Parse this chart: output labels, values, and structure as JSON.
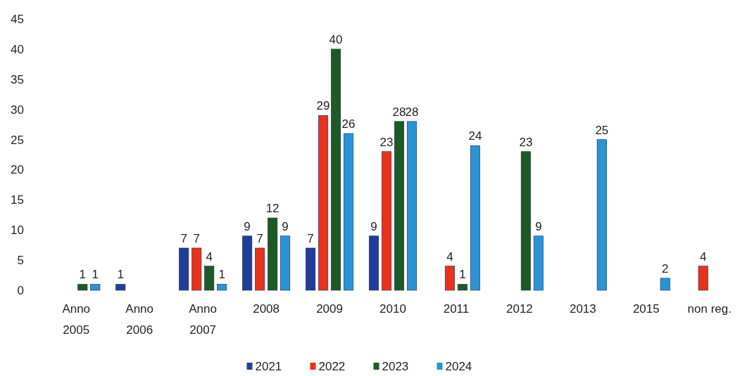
{
  "chart_data": {
    "type": "bar",
    "categories": [
      "Anno\n2005",
      "Anno\n2006",
      "Anno\n2007",
      "2008",
      "2009",
      "2010",
      "2011",
      "2012",
      "2013",
      "2015",
      "non reg."
    ],
    "series": [
      {
        "name": "2021",
        "color": "#1f3e9a",
        "values": [
          null,
          1,
          7,
          9,
          7,
          9,
          null,
          null,
          null,
          null,
          null
        ]
      },
      {
        "name": "2022",
        "color": "#e8321e",
        "values": [
          null,
          null,
          7,
          7,
          29,
          23,
          4,
          null,
          null,
          null,
          4
        ]
      },
      {
        "name": "2023",
        "color": "#1e5a23",
        "values": [
          1,
          null,
          4,
          12,
          40,
          28,
          1,
          23,
          null,
          null,
          null
        ]
      },
      {
        "name": "2024",
        "color": "#2a93d5",
        "values": [
          1,
          null,
          1,
          9,
          26,
          28,
          24,
          9,
          25,
          2,
          null
        ]
      }
    ],
    "ylim": [
      0,
      45
    ],
    "yticks": [
      0,
      5,
      10,
      15,
      20,
      25,
      30,
      35,
      40,
      45
    ],
    "grid": false,
    "data_labels": true,
    "legend": "bottom"
  }
}
